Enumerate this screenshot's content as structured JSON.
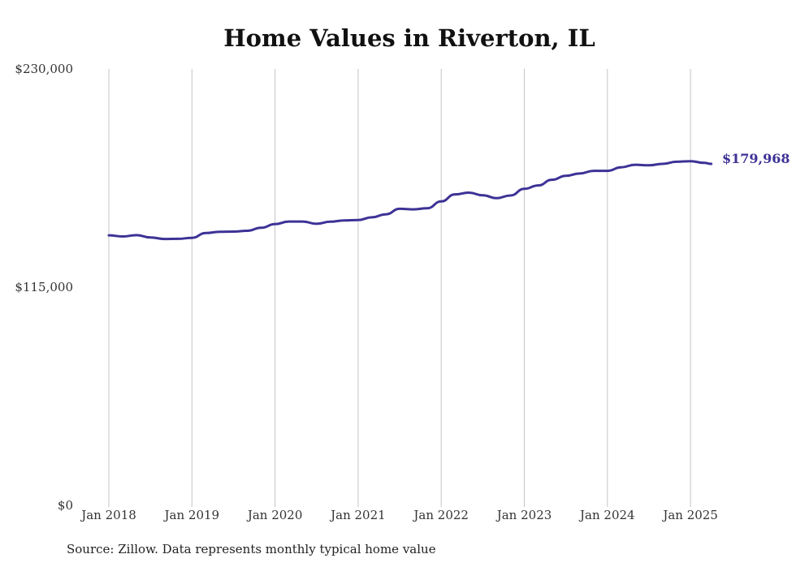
{
  "chart_data": {
    "type": "line",
    "title": "Home Values in Riverton, IL",
    "xlabel": "",
    "ylabel": "",
    "x_tick_labels": [
      "Jan 2018",
      "Jan 2019",
      "Jan 2020",
      "Jan 2021",
      "Jan 2022",
      "Jan 2023",
      "Jan 2024",
      "Jan 2025"
    ],
    "y_tick_labels": [
      "$230,000",
      "$115,000",
      "$0"
    ],
    "y_ticks": [
      230000,
      115000,
      0
    ],
    "ylim": [
      0,
      230000
    ],
    "xlim": [
      "2018-01",
      "2025-04"
    ],
    "grid": "vertical",
    "line_color": "#3d3296",
    "end_label": "$179,968",
    "series": [
      {
        "values": [
          [
            "2018-01",
            142300
          ],
          [
            "2018-03",
            141700
          ],
          [
            "2018-05",
            142400
          ],
          [
            "2018-07",
            141200
          ],
          [
            "2018-09",
            140400
          ],
          [
            "2018-11",
            140500
          ],
          [
            "2019-01",
            141000
          ],
          [
            "2019-03",
            143500
          ],
          [
            "2019-05",
            144200
          ],
          [
            "2019-07",
            144300
          ],
          [
            "2019-09",
            144700
          ],
          [
            "2019-11",
            146300
          ],
          [
            "2020-01",
            148200
          ],
          [
            "2020-03",
            149600
          ],
          [
            "2020-05",
            149600
          ],
          [
            "2020-07",
            148400
          ],
          [
            "2020-09",
            149500
          ],
          [
            "2020-11",
            150200
          ],
          [
            "2021-01",
            150400
          ],
          [
            "2021-03",
            151800
          ],
          [
            "2021-05",
            153400
          ],
          [
            "2021-07",
            156300
          ],
          [
            "2021-09",
            156000
          ],
          [
            "2021-11",
            156600
          ],
          [
            "2022-01",
            160200
          ],
          [
            "2022-03",
            163900
          ],
          [
            "2022-05",
            164800
          ],
          [
            "2022-07",
            163400
          ],
          [
            "2022-09",
            161900
          ],
          [
            "2022-11",
            163300
          ],
          [
            "2023-01",
            166800
          ],
          [
            "2023-03",
            168600
          ],
          [
            "2023-05",
            171600
          ],
          [
            "2023-07",
            173700
          ],
          [
            "2023-09",
            174900
          ],
          [
            "2023-11",
            176300
          ],
          [
            "2024-01",
            176300
          ],
          [
            "2024-03",
            178200
          ],
          [
            "2024-05",
            179500
          ],
          [
            "2024-07",
            179200
          ],
          [
            "2024-09",
            180000
          ],
          [
            "2024-11",
            181100
          ],
          [
            "2025-01",
            181400
          ],
          [
            "2025-03",
            180500
          ],
          [
            "2025-04",
            179968
          ]
        ]
      }
    ]
  },
  "footer": {
    "source": "Source: Zillow. Data represents monthly typical home value"
  }
}
